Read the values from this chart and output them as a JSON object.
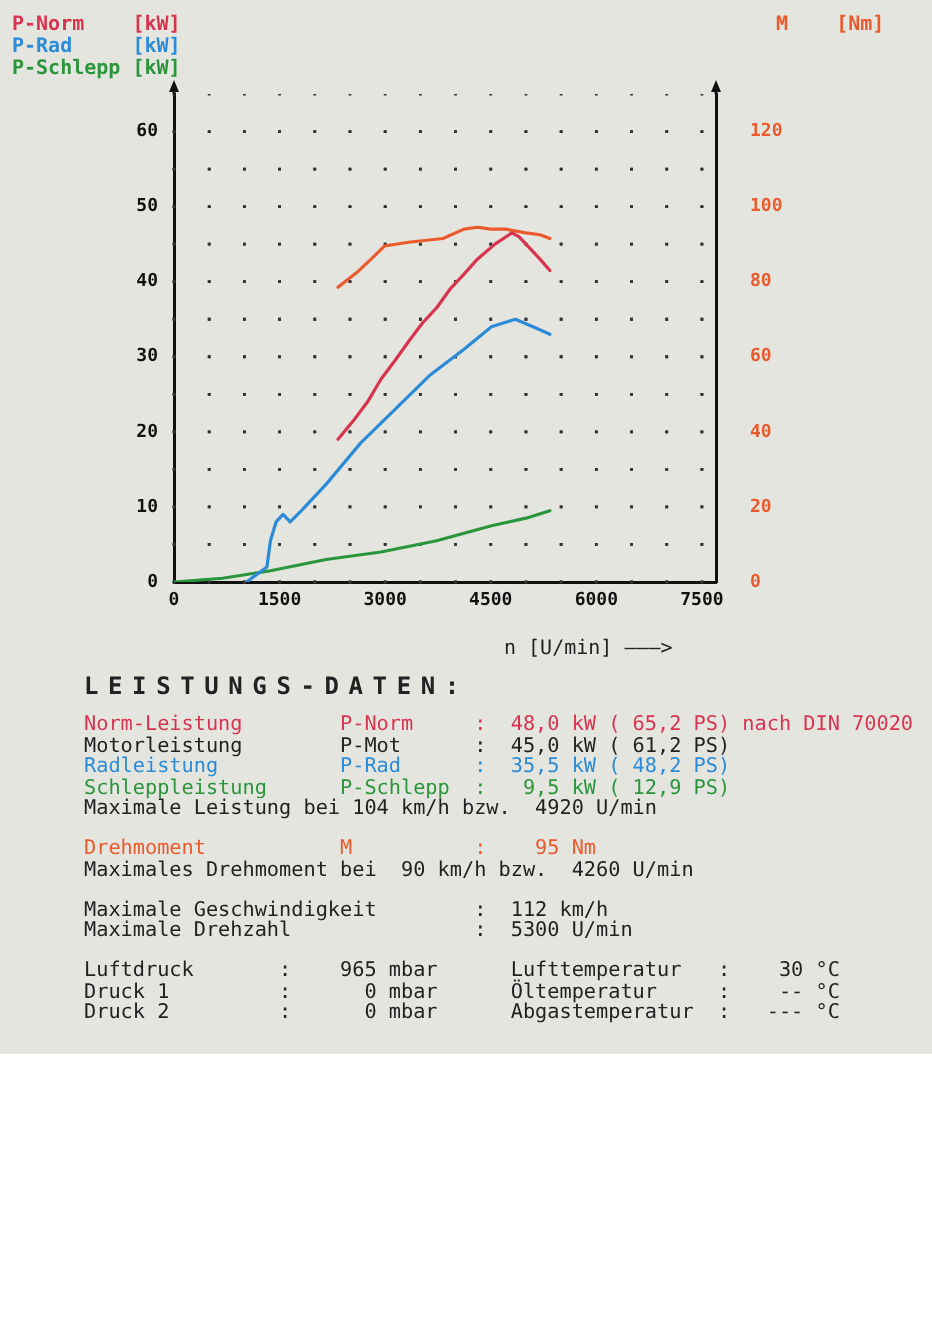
{
  "chart_data": {
    "type": "line",
    "xlabel": "n [U/min] ———>",
    "xlim": [
      0,
      7700
    ],
    "xticks": [
      0,
      {
        "value": 500,
        "label": null
      },
      {
        "value": 1000,
        "label": null
      },
      1500,
      {
        "value": 2000,
        "label": null
      },
      {
        "value": 2500,
        "label": null
      },
      3000,
      {
        "value": 3500,
        "label": null
      },
      {
        "value": 4000,
        "label": null
      },
      4500,
      {
        "value": 5000,
        "label": null
      },
      {
        "value": 5500,
        "label": null
      },
      6000,
      {
        "value": 6500,
        "label": null
      },
      {
        "value": 7000,
        "label": null
      },
      7500
    ],
    "ylim": [
      0,
      65
    ],
    "yticks": [
      0,
      {
        "value": 5,
        "label": null
      },
      10,
      {
        "value": 15,
        "label": null
      },
      20,
      {
        "value": 25,
        "label": null
      },
      30,
      {
        "value": 35,
        "label": null
      },
      40,
      {
        "value": 45,
        "label": null
      },
      50,
      {
        "value": 55,
        "label": null
      },
      60
    ],
    "y2lim": [
      0,
      130
    ],
    "y2ticks": [
      0,
      20,
      40,
      60,
      80,
      100,
      120
    ],
    "grid": true,
    "legend": "top",
    "marker": "none",
    "line_style": "solid",
    "series": [
      {
        "name": "P-Norm [kW]",
        "color": "#d8344f",
        "x": [
          2330,
          2550,
          2750,
          2940,
          3140,
          3330,
          3530,
          3730,
          3920,
          4120,
          4310,
          4560,
          4800,
          4900,
          5000,
          5100,
          5200,
          5340
        ],
        "values": [
          19,
          21.5,
          24,
          27,
          29.5,
          32,
          34.5,
          36.5,
          39,
          41,
          43,
          45,
          46.5,
          46,
          45,
          44,
          43,
          41.5
        ]
      },
      {
        "name": "P-Rad [kW]",
        "color": "#2b8bd6",
        "x": [
          1030,
          1320,
          1370,
          1450,
          1550,
          1650,
          1810,
          2160,
          2650,
          3140,
          3630,
          4120,
          4510,
          4850,
          5100,
          5340
        ],
        "values": [
          0,
          2,
          5.5,
          8,
          9,
          8,
          9.5,
          13,
          18.5,
          23,
          27.5,
          31,
          34,
          35,
          34,
          33
        ]
      },
      {
        "name": "P-Schlepp [kW]",
        "color": "#2a963c",
        "x": [
          0,
          690,
          1370,
          2160,
          2940,
          3730,
          4510,
          5000,
          5340
        ],
        "values": [
          0,
          0.5,
          1.5,
          3,
          4,
          5.5,
          7.5,
          8.5,
          9.5
        ]
      },
      {
        "name": "M [Nm]",
        "color": "#ea5a2c",
        "axis": "y2",
        "x": [
          2330,
          2600,
          2800,
          2990,
          3330,
          3820,
          4120,
          4310,
          4500,
          4710,
          5000,
          5200,
          5340
        ],
        "values": [
          78.5,
          82.5,
          86,
          89.5,
          90.5,
          91.5,
          94,
          94.5,
          94,
          94,
          93,
          92.5,
          91.5
        ]
      }
    ],
    "annotations": [
      "LEISTUNGS-DATEN:",
      "Norm-Leistung        P-Norm     :  48,0 kW ( 65,2 PS) nach DIN 70020",
      "Motorleistung        P-Mot      :  45,0 kW ( 61,2 PS)",
      "Radleistung          P-Rad      :  35,5 kW ( 48,2 PS)",
      "Schleppleistung      P-Schlepp  :   9,5 kW ( 12,9 PS)",
      "Maximale Leistung bei 104 km/h bzw.  4920 U/min",
      "Drehmoment           M          :    95 Nm",
      "Maximales Drehmoment bei  90 km/h bzw.  4260 U/min",
      "Maximale Geschwindigkeit        :  112 km/h",
      "Maximale Drehzahl               :  5300 U/min",
      "Luftdruck       :    965 mbar      Lufttemperatur   :    30 °C",
      "Druck 1         :      0 mbar      Öltemperatur     :    -- °C",
      "Druck 2         :      0 mbar      Abgastemperatur  :   --- °C"
    ]
  }
}
